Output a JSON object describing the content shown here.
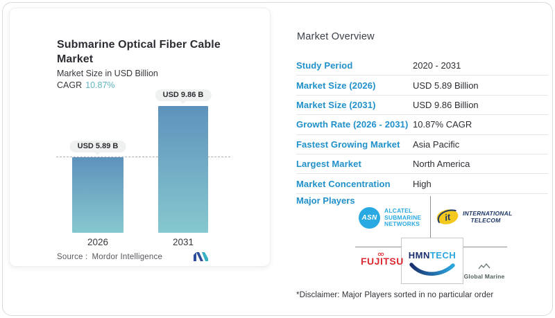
{
  "left_card": {
    "title": "Submarine Optical Fiber Cable Market",
    "subtitle": "Market Size in USD Billion",
    "cagr_label": "CAGR",
    "cagr_value": "10.87%",
    "source_label": "Source :",
    "source_value": "Mordor Intelligence"
  },
  "chart_data": {
    "type": "bar",
    "categories": [
      "2026",
      "2031"
    ],
    "values": [
      5.89,
      9.86
    ],
    "value_labels": [
      "USD 5.89 B",
      "USD 9.86 B"
    ],
    "title": "Submarine Optical Fiber Cable Market",
    "ylabel": "Market Size in USD Billion",
    "cagr": "10.87%",
    "dashline_at_value": 5.89,
    "bar_gradient_top": "#5e92bc",
    "bar_gradient_bottom": "#86c8cf",
    "legend": "none",
    "grid": "off"
  },
  "overview": {
    "heading": "Market Overview",
    "rows": [
      {
        "label": "Study Period",
        "value": "2020 - 2031"
      },
      {
        "label": "Market Size (2026)",
        "value": "USD 5.89 Billion"
      },
      {
        "label": "Market Size (2031)",
        "value": "USD 9.86 Billion"
      },
      {
        "label": "Growth Rate (2026 - 2031)",
        "value": "10.87% CAGR"
      },
      {
        "label": "Fastest Growing Market",
        "value": "Asia Pacific"
      },
      {
        "label": "Largest Market",
        "value": "North America"
      },
      {
        "label": "Market Concentration",
        "value": "High"
      }
    ],
    "major_players_label": "Major Players",
    "disclaimer": "*Disclaimer: Major Players sorted in no particular order"
  },
  "players": {
    "asn": {
      "abbr": "ASN",
      "line1": "ALCATEL",
      "line2": "SUBMARINE",
      "line3": "NETWORKS"
    },
    "itel": {
      "abbr": "it",
      "line1": "INTERNATIONAL",
      "line2": "TELECOM"
    },
    "fujitsu": {
      "name": "FUJITSU"
    },
    "hmn": {
      "name_dark": "HMN",
      "name_light": "TECH"
    },
    "global_marine": {
      "name": "Global Marine"
    }
  },
  "colors": {
    "accent_blue": "#1f90ca",
    "teal": "#5cb4bd",
    "asn_cyan": "#29a9e1",
    "itel_navy": "#1c3667",
    "itel_yellow": "#f2c91c",
    "fujitsu_red": "#dc2a32",
    "hmn_navy": "#1b2f6e",
    "hmn_cyan": "#2ba7df"
  }
}
